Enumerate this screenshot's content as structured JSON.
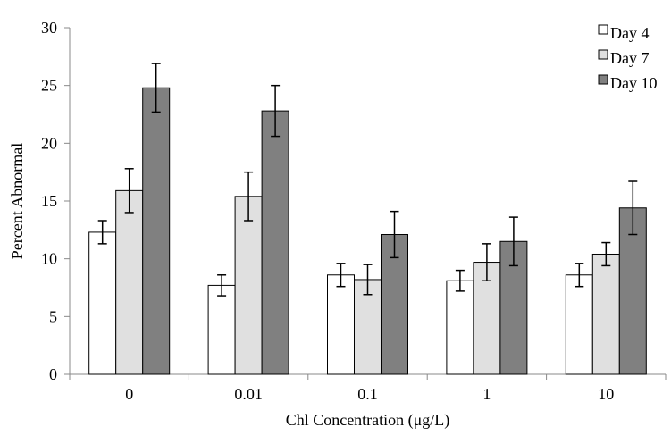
{
  "chart_data": {
    "type": "bar",
    "xlabel": "Chl Concentration (μg/L)",
    "ylabel": "Percent Abnormal",
    "ylim": [
      0,
      30
    ],
    "y_ticks": [
      0,
      5,
      10,
      15,
      20,
      25,
      30
    ],
    "categories": [
      "0",
      "0.01",
      "0.1",
      "1",
      "10"
    ],
    "series": [
      {
        "name": "Day 4",
        "color": "#ffffff",
        "values": [
          12.3,
          7.7,
          8.6,
          8.1,
          8.6
        ],
        "errors": [
          1.0,
          0.9,
          1.0,
          0.9,
          1.0
        ]
      },
      {
        "name": "Day 7",
        "color": "#e0e0e0",
        "values": [
          15.9,
          15.4,
          8.2,
          9.7,
          10.4
        ],
        "errors": [
          1.9,
          2.1,
          1.3,
          1.6,
          1.0
        ]
      },
      {
        "name": "Day 10",
        "color": "#808080",
        "values": [
          24.8,
          22.8,
          12.1,
          11.5,
          14.4
        ],
        "errors": [
          2.1,
          2.2,
          2.0,
          2.1,
          2.3
        ]
      }
    ],
    "legend_position": "top-right",
    "grid": false
  }
}
